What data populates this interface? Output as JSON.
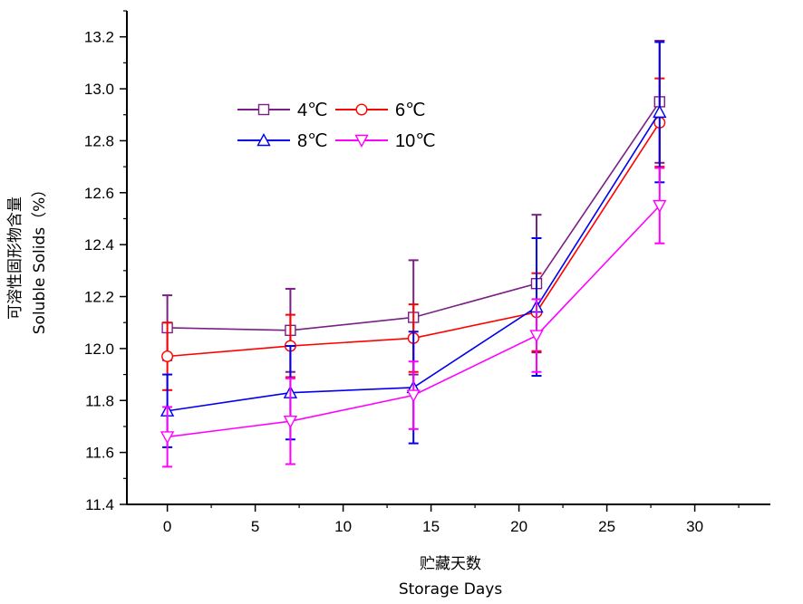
{
  "chart_data": {
    "type": "line",
    "xlabel_cn": "贮藏天数",
    "xlabel": "Storage Days",
    "ylabel_cn": "可溶性固形物含量",
    "ylabel": "Soluble Solids（%）",
    "xlim": [
      -2.3,
      34.3
    ],
    "ylim": [
      11.4,
      13.3
    ],
    "xticks": [
      0,
      5,
      10,
      15,
      20,
      25,
      30
    ],
    "yticks": [
      11.4,
      11.6,
      11.8,
      12.0,
      12.2,
      12.4,
      12.6,
      12.8,
      13.0,
      13.2
    ],
    "x": [
      0,
      7,
      14,
      21,
      28
    ],
    "grid": false,
    "legend_position": "top-left",
    "series": [
      {
        "name": "4℃",
        "color": "#7a1f86",
        "marker": "square",
        "values": [
          12.08,
          12.07,
          12.12,
          12.25,
          12.95
        ],
        "errors": [
          0.125,
          0.16,
          0.22,
          0.265,
          0.235
        ]
      },
      {
        "name": "6℃",
        "color": "#ff0000",
        "marker": "circle",
        "values": [
          11.97,
          12.01,
          12.04,
          12.14,
          12.87
        ],
        "errors": [
          0.13,
          0.12,
          0.13,
          0.15,
          0.17
        ]
      },
      {
        "name": "8℃",
        "color": "#0000ee",
        "marker": "triangle-up",
        "values": [
          11.76,
          11.83,
          11.85,
          12.16,
          12.91
        ],
        "errors": [
          0.14,
          0.18,
          0.215,
          0.265,
          0.27
        ]
      },
      {
        "name": "10℃",
        "color": "#ff00ff",
        "marker": "triangle-down",
        "values": [
          11.66,
          11.72,
          11.82,
          12.05,
          12.55
        ],
        "errors": [
          0.115,
          0.165,
          0.13,
          0.14,
          0.145
        ]
      }
    ]
  }
}
